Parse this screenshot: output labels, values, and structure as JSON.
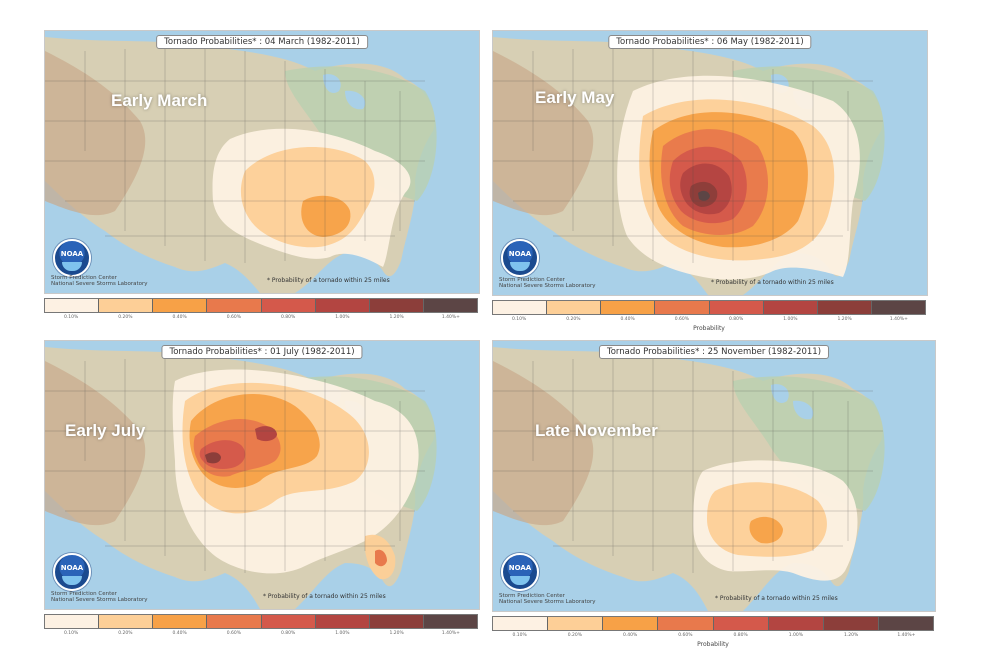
{
  "legend": {
    "ticks": [
      "0.10%",
      "0.20%",
      "0.40%",
      "0.60%",
      "0.80%",
      "1.00%",
      "1.20%",
      "1.40%+"
    ],
    "title": "Probability",
    "colors": [
      "#fdf1e3",
      "#fdcf97",
      "#f7a147",
      "#e8794c",
      "#d4594b",
      "#b34541",
      "#8c3e3a",
      "#5c4545"
    ]
  },
  "footer": {
    "line1": "Storm Prediction Center",
    "line2": "National Severe Storms Laboratory",
    "prob_note": "* Probability of a tornado within 25 miles"
  },
  "logo_text": "NOAA",
  "panels": [
    {
      "title": "Tornado Probabilities* : 04 March (1982-2011)",
      "season": "Early March"
    },
    {
      "title": "Tornado Probabilities* : 06 May (1982-2011)",
      "season": "Early May"
    },
    {
      "title": "Tornado Probabilities* : 01 July (1982-2011)",
      "season": "Early July"
    },
    {
      "title": "Tornado Probabilities* : 25 November (1982-2011)",
      "season": "Late November"
    }
  ]
}
